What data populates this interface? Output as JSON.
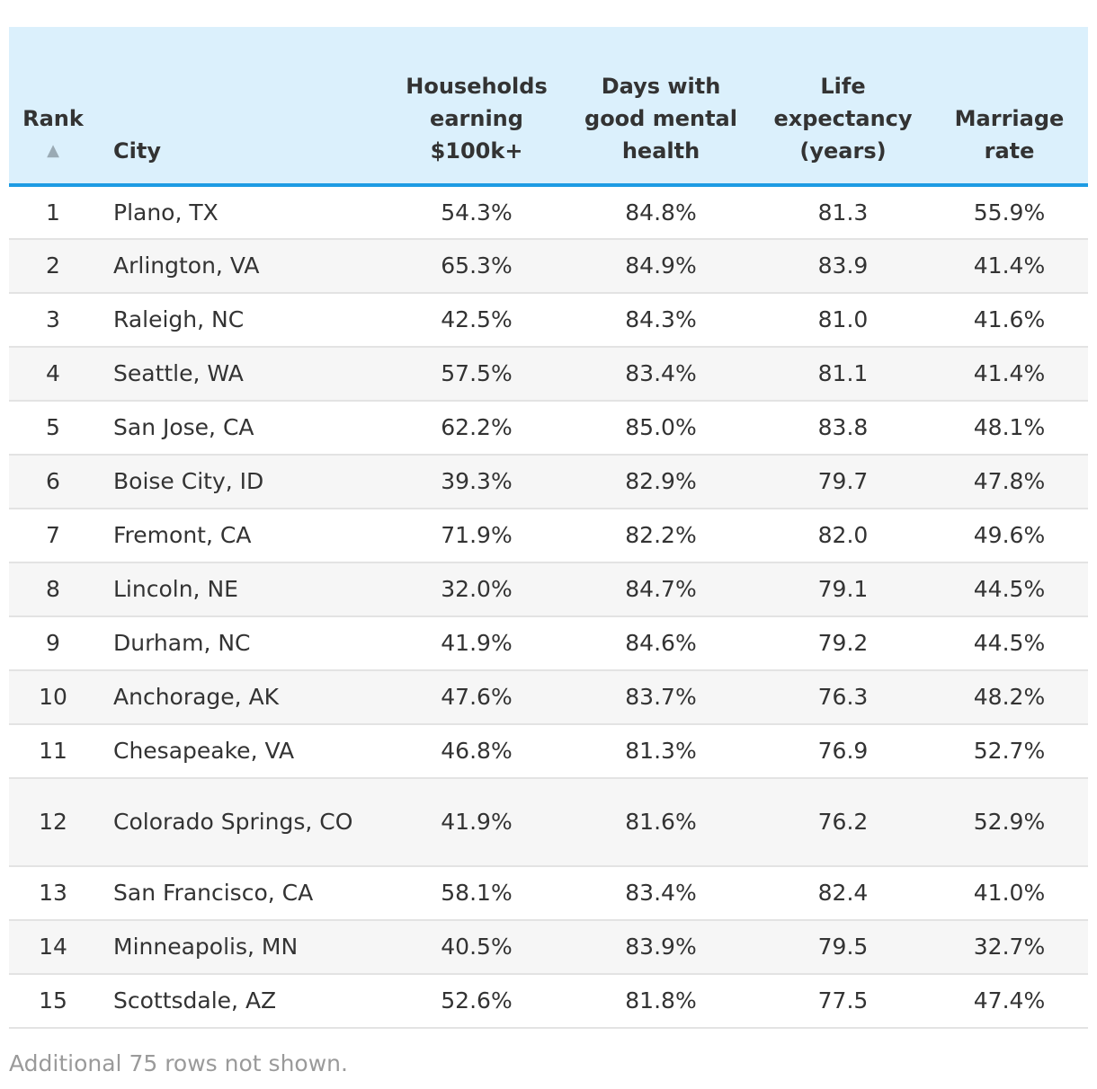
{
  "table": {
    "headers": {
      "rank": "Rank",
      "sort_indicator": "▲",
      "city": "City",
      "households": "Households earning $100k+",
      "days_mental": "Days with good mental health",
      "life_expectancy": "Life expectancy (years)",
      "marriage_rate": "Marriage rate"
    },
    "rows": [
      {
        "rank": "1",
        "city": "Plano, TX",
        "households": "54.3%",
        "days_mental": "84.8%",
        "life_expectancy": "81.3",
        "marriage_rate": "55.9%"
      },
      {
        "rank": "2",
        "city": "Arlington, VA",
        "households": "65.3%",
        "days_mental": "84.9%",
        "life_expectancy": "83.9",
        "marriage_rate": "41.4%"
      },
      {
        "rank": "3",
        "city": "Raleigh, NC",
        "households": "42.5%",
        "days_mental": "84.3%",
        "life_expectancy": "81.0",
        "marriage_rate": "41.6%"
      },
      {
        "rank": "4",
        "city": "Seattle, WA",
        "households": "57.5%",
        "days_mental": "83.4%",
        "life_expectancy": "81.1",
        "marriage_rate": "41.4%"
      },
      {
        "rank": "5",
        "city": "San Jose, CA",
        "households": "62.2%",
        "days_mental": "85.0%",
        "life_expectancy": "83.8",
        "marriage_rate": "48.1%"
      },
      {
        "rank": "6",
        "city": "Boise City, ID",
        "households": "39.3%",
        "days_mental": "82.9%",
        "life_expectancy": "79.7",
        "marriage_rate": "47.8%"
      },
      {
        "rank": "7",
        "city": "Fremont, CA",
        "households": "71.9%",
        "days_mental": "82.2%",
        "life_expectancy": "82.0",
        "marriage_rate": "49.6%"
      },
      {
        "rank": "8",
        "city": "Lincoln, NE",
        "households": "32.0%",
        "days_mental": "84.7%",
        "life_expectancy": "79.1",
        "marriage_rate": "44.5%"
      },
      {
        "rank": "9",
        "city": "Durham, NC",
        "households": "41.9%",
        "days_mental": "84.6%",
        "life_expectancy": "79.2",
        "marriage_rate": "44.5%"
      },
      {
        "rank": "10",
        "city": "Anchorage, AK",
        "households": "47.6%",
        "days_mental": "83.7%",
        "life_expectancy": "76.3",
        "marriage_rate": "48.2%"
      },
      {
        "rank": "11",
        "city": "Chesapeake, VA",
        "households": "46.8%",
        "days_mental": "81.3%",
        "life_expectancy": "76.9",
        "marriage_rate": "52.7%"
      },
      {
        "rank": "12",
        "city": "Colorado Springs, CO",
        "households": "41.9%",
        "days_mental": "81.6%",
        "life_expectancy": "76.2",
        "marriage_rate": "52.9%"
      },
      {
        "rank": "13",
        "city": "San Francisco, CA",
        "households": "58.1%",
        "days_mental": "83.4%",
        "life_expectancy": "82.4",
        "marriage_rate": "41.0%"
      },
      {
        "rank": "14",
        "city": "Minneapolis, MN",
        "households": "40.5%",
        "days_mental": "83.9%",
        "life_expectancy": "79.5",
        "marriage_rate": "32.7%"
      },
      {
        "rank": "15",
        "city": "Scottsdale, AZ",
        "households": "52.6%",
        "days_mental": "81.8%",
        "life_expectancy": "77.5",
        "marriage_rate": "47.4%"
      }
    ]
  },
  "footnote": "Additional 75 rows not shown.",
  "colors": {
    "header_bg": "#dbf0fc",
    "header_rule": "#1d9be3",
    "stripe": "#f6f6f6",
    "footnote": "#9a9a9a"
  }
}
